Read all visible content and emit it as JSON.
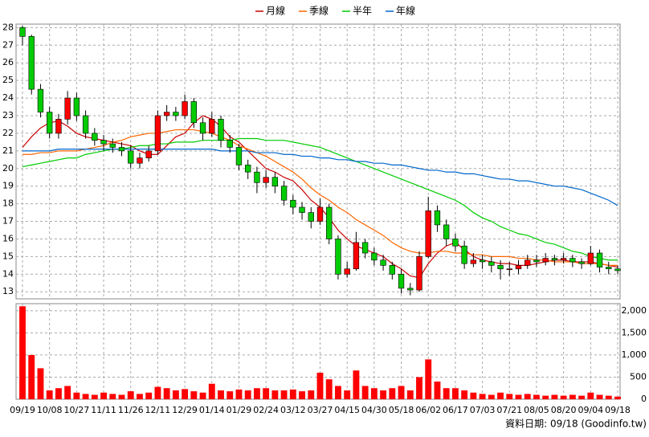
{
  "chart_data": [
    {
      "type": "candlestick",
      "categories": [
        "09/19",
        null,
        null,
        "10/08",
        null,
        null,
        "10/27",
        null,
        null,
        "11/11",
        null,
        null,
        "11/26",
        null,
        null,
        "12/11",
        null,
        null,
        "12/29",
        null,
        null,
        "01/14",
        null,
        null,
        "01/29",
        null,
        null,
        "02/24",
        null,
        null,
        "03/12",
        null,
        null,
        "03/27",
        null,
        null,
        "04/15",
        null,
        null,
        "04/30",
        null,
        null,
        "05/18",
        null,
        null,
        "06/02",
        null,
        null,
        "06/17",
        null,
        null,
        "07/03",
        null,
        null,
        "07/21",
        null,
        null,
        "08/05",
        null,
        null,
        "08/20",
        null,
        null,
        "09/04",
        null,
        null,
        "09/18"
      ],
      "candles": [
        [
          28.0,
          28.1,
          27.0,
          27.5
        ],
        [
          27.5,
          27.6,
          24.2,
          24.5
        ],
        [
          24.5,
          24.8,
          22.9,
          23.2
        ],
        [
          23.2,
          23.5,
          21.7,
          22.0
        ],
        [
          22.0,
          23.1,
          21.7,
          22.8
        ],
        [
          22.8,
          24.4,
          22.5,
          24.0
        ],
        [
          24.0,
          24.3,
          22.7,
          23.0
        ],
        [
          23.0,
          23.3,
          21.7,
          22.0
        ],
        [
          22.0,
          22.3,
          21.3,
          21.6
        ],
        [
          21.6,
          21.9,
          21.0,
          21.4
        ],
        [
          21.4,
          21.7,
          20.9,
          21.2
        ],
        [
          21.2,
          21.5,
          20.7,
          21.0
        ],
        [
          21.0,
          21.3,
          20.0,
          20.3
        ],
        [
          20.3,
          20.9,
          20.0,
          20.6
        ],
        [
          20.6,
          21.3,
          20.4,
          21.0
        ],
        [
          21.0,
          23.3,
          20.8,
          23.0
        ],
        [
          23.0,
          23.6,
          22.7,
          23.2
        ],
        [
          23.2,
          23.5,
          22.7,
          23.0
        ],
        [
          23.0,
          24.2,
          22.8,
          23.8
        ],
        [
          23.8,
          24.0,
          22.3,
          22.6
        ],
        [
          22.6,
          22.9,
          21.6,
          22.0
        ],
        [
          22.0,
          23.2,
          21.8,
          22.8
        ],
        [
          22.8,
          23.0,
          21.2,
          21.6
        ],
        [
          21.6,
          21.9,
          20.9,
          21.2
        ],
        [
          21.2,
          21.4,
          19.9,
          20.2
        ],
        [
          20.2,
          20.5,
          19.4,
          19.8
        ],
        [
          19.8,
          20.1,
          18.6,
          19.2
        ],
        [
          19.2,
          19.9,
          18.9,
          19.5
        ],
        [
          19.5,
          19.8,
          18.6,
          19.0
        ],
        [
          19.0,
          19.3,
          17.9,
          18.2
        ],
        [
          18.2,
          18.5,
          17.4,
          17.8
        ],
        [
          17.8,
          18.1,
          17.1,
          17.5
        ],
        [
          17.5,
          17.8,
          16.6,
          17.0
        ],
        [
          17.0,
          18.3,
          16.8,
          17.8
        ],
        [
          17.8,
          18.0,
          15.7,
          16.0
        ],
        [
          16.0,
          16.2,
          13.7,
          14.0
        ],
        [
          14.0,
          14.7,
          13.8,
          14.3
        ],
        [
          14.3,
          16.4,
          14.2,
          15.8
        ],
        [
          15.8,
          16.0,
          14.9,
          15.2
        ],
        [
          15.2,
          15.5,
          14.5,
          14.8
        ],
        [
          14.8,
          15.1,
          14.2,
          14.5
        ],
        [
          14.5,
          14.7,
          13.7,
          14.0
        ],
        [
          14.0,
          14.3,
          12.9,
          13.2
        ],
        [
          13.2,
          13.5,
          12.8,
          13.1
        ],
        [
          13.1,
          15.3,
          13.0,
          15.0
        ],
        [
          15.0,
          18.4,
          14.9,
          17.6
        ],
        [
          17.6,
          17.9,
          16.4,
          16.8
        ],
        [
          16.8,
          17.1,
          15.6,
          16.0
        ],
        [
          16.0,
          16.3,
          15.3,
          15.6
        ],
        [
          15.6,
          15.9,
          14.3,
          14.6
        ],
        [
          14.6,
          15.2,
          14.4,
          14.8
        ],
        [
          14.8,
          15.1,
          14.3,
          14.7
        ],
        [
          14.7,
          15.0,
          14.1,
          14.5
        ],
        [
          14.5,
          14.8,
          13.7,
          14.3
        ],
        [
          14.3,
          14.7,
          13.9,
          14.3
        ],
        [
          14.3,
          14.8,
          14.0,
          14.5
        ],
        [
          14.5,
          15.1,
          14.3,
          14.8
        ],
        [
          14.8,
          15.1,
          14.4,
          14.7
        ],
        [
          14.7,
          15.2,
          14.5,
          14.9
        ],
        [
          14.9,
          15.1,
          14.5,
          14.8
        ],
        [
          14.8,
          15.2,
          14.6,
          14.9
        ],
        [
          14.9,
          15.1,
          14.4,
          14.7
        ],
        [
          14.7,
          14.9,
          14.3,
          14.6
        ],
        [
          14.6,
          15.6,
          14.5,
          15.2
        ],
        [
          15.2,
          15.4,
          14.1,
          14.4
        ],
        [
          14.4,
          14.7,
          14.0,
          14.3
        ],
        [
          14.3,
          14.5,
          14.0,
          14.2
        ]
      ],
      "up_color": "#ff0000",
      "down_color": "#00cc00",
      "series": [
        {
          "name": "月線",
          "color": "#cc0000",
          "values": [
            21.2,
            21.8,
            22.3,
            22.6,
            22.7,
            22.4,
            22.0,
            21.8,
            21.7,
            21.6,
            21.5,
            21.4,
            21.3,
            21.0,
            20.8,
            20.8,
            21.3,
            21.8,
            22.0,
            22.6,
            23.0,
            22.8,
            22.4,
            21.8,
            21.5,
            21.0,
            20.5,
            20.0,
            19.8,
            19.5,
            19.3,
            18.8,
            18.2,
            17.8,
            17.2,
            16.5,
            16.0,
            15.6,
            15.4,
            15.2,
            15.0,
            14.6,
            14.3,
            13.9,
            13.8,
            14.6,
            15.2,
            15.6,
            15.8,
            15.4,
            15.0,
            14.8,
            14.7,
            14.6,
            14.6,
            14.5,
            14.5,
            14.6,
            14.7,
            14.8,
            14.8,
            14.7,
            14.7,
            14.7,
            14.6,
            14.5,
            14.4
          ]
        },
        {
          "name": "季線",
          "color": "#ff6600",
          "values": [
            20.8,
            20.8,
            20.9,
            20.9,
            21.0,
            21.0,
            21.0,
            21.1,
            21.2,
            21.3,
            21.5,
            21.6,
            21.8,
            21.9,
            22.0,
            22.0,
            22.1,
            22.2,
            22.2,
            22.2,
            22.1,
            22.0,
            21.8,
            21.6,
            21.3,
            21.1,
            20.9,
            20.7,
            20.4,
            20.1,
            19.8,
            19.4,
            18.9,
            18.5,
            18.2,
            17.8,
            17.5,
            17.1,
            16.8,
            16.5,
            16.2,
            15.8,
            15.5,
            15.3,
            15.2,
            15.2,
            15.3,
            15.3,
            15.2,
            15.2,
            15.1,
            15.1,
            15.0,
            15.0,
            15.0,
            14.9,
            14.9,
            14.8,
            14.8,
            14.7,
            14.7,
            14.7,
            14.6,
            14.6,
            14.6,
            14.5,
            14.5
          ]
        },
        {
          "name": "半年",
          "color": "#00cc00",
          "values": [
            20.1,
            20.2,
            20.3,
            20.4,
            20.5,
            20.6,
            20.6,
            20.8,
            20.9,
            21.0,
            21.1,
            21.1,
            21.2,
            21.3,
            21.3,
            21.4,
            21.4,
            21.5,
            21.5,
            21.5,
            21.6,
            21.6,
            21.6,
            21.6,
            21.7,
            21.7,
            21.7,
            21.6,
            21.6,
            21.6,
            21.5,
            21.4,
            21.3,
            21.2,
            21.0,
            20.8,
            20.6,
            20.4,
            20.2,
            20.0,
            19.8,
            19.6,
            19.4,
            19.2,
            19.0,
            18.8,
            18.6,
            18.4,
            18.2,
            17.9,
            17.5,
            17.2,
            17.0,
            16.7,
            16.5,
            16.3,
            16.2,
            16.0,
            15.8,
            15.7,
            15.5,
            15.3,
            15.2,
            15.0,
            14.9,
            14.8,
            14.8
          ]
        },
        {
          "name": "年線",
          "color": "#0066cc",
          "values": [
            21.0,
            21.0,
            21.0,
            21.0,
            21.1,
            21.1,
            21.1,
            21.1,
            21.1,
            21.1,
            21.1,
            21.1,
            21.1,
            21.1,
            21.1,
            21.1,
            21.1,
            21.1,
            21.1,
            21.1,
            21.1,
            21.1,
            21.0,
            21.0,
            21.0,
            21.0,
            20.9,
            20.9,
            20.9,
            20.8,
            20.8,
            20.7,
            20.7,
            20.6,
            20.6,
            20.5,
            20.5,
            20.4,
            20.4,
            20.3,
            20.3,
            20.2,
            20.2,
            20.1,
            20.0,
            19.9,
            19.9,
            19.8,
            19.8,
            19.7,
            19.7,
            19.6,
            19.5,
            19.4,
            19.4,
            19.3,
            19.3,
            19.2,
            19.1,
            19.0,
            19.0,
            18.9,
            18.8,
            18.6,
            18.4,
            18.2,
            17.9
          ]
        }
      ],
      "ylim": [
        12.6,
        28.2
      ],
      "yticks": [
        13,
        14,
        15,
        16,
        17,
        18,
        19,
        20,
        21,
        22,
        23,
        24,
        25,
        26,
        27,
        28
      ],
      "grid": true
    },
    {
      "type": "bar",
      "values": [
        2100,
        1000,
        700,
        200,
        250,
        300,
        150,
        120,
        100,
        150,
        120,
        100,
        180,
        120,
        150,
        280,
        250,
        200,
        230,
        180,
        150,
        350,
        200,
        180,
        220,
        200,
        250,
        250,
        200,
        200,
        220,
        180,
        200,
        600,
        450,
        300,
        200,
        650,
        300,
        250,
        200,
        250,
        300,
        200,
        500,
        900,
        400,
        250,
        250,
        200,
        150,
        120,
        100,
        150,
        120,
        100,
        120,
        100,
        80,
        100,
        80,
        100,
        80,
        150,
        100,
        80,
        60
      ],
      "color": "#ff0000",
      "ylim": [
        0,
        2160
      ],
      "yticks": [
        0,
        500,
        {
          "value": 1000,
          "label": "1,000"
        },
        {
          "value": 1500,
          "label": "1,500"
        },
        {
          "value": 2000,
          "label": "2,000"
        }
      ],
      "grid": true,
      "note": "資料日期: 09/18 (Goodinfo.tw)"
    }
  ]
}
